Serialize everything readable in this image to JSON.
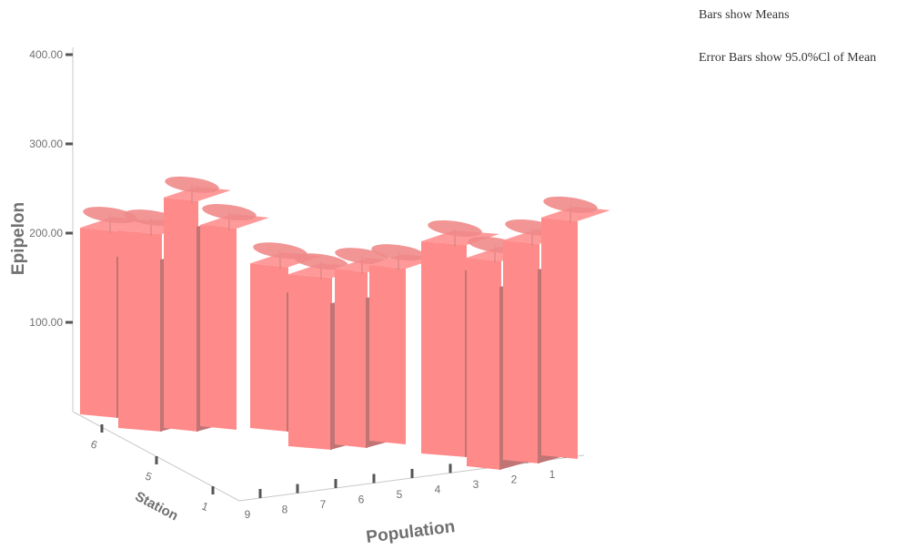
{
  "notes": {
    "bars_show": "Bars show Means",
    "error_bars": "Error Bars show 95.0%Cl of Mean"
  },
  "chart_data": {
    "type": "bar",
    "subtype": "3d-clustered",
    "ylabel": "Epipelon",
    "xlabel": "Population",
    "zlabel": "Station",
    "ylim": [
      0,
      400
    ],
    "yticks": [
      "100.00",
      "200.00",
      "300.00",
      "400.00"
    ],
    "x_categories": [
      "9",
      "8",
      "7",
      "6",
      "5",
      "4",
      "3",
      "2",
      "1"
    ],
    "z_categories": [
      "6",
      "5",
      "1"
    ],
    "bar_color": "#ff8a8a",
    "bar_side_color": "#c07474",
    "bars": [
      {
        "station": "6",
        "population": "9",
        "value": 255
      },
      {
        "station": "6",
        "population": "8",
        "value": 270
      },
      {
        "station": "6",
        "population": "7",
        "value": 315
      },
      {
        "station": "6",
        "population": "6",
        "value": 275
      },
      {
        "station": "5",
        "population": "6",
        "value": 225
      },
      {
        "station": "5",
        "population": "5",
        "value": 235
      },
      {
        "station": "5",
        "population": "4",
        "value": 240
      },
      {
        "station": "5",
        "population": "3",
        "value": 240
      },
      {
        "station": "1",
        "population": "3",
        "value": 290
      },
      {
        "station": "1",
        "population": "2",
        "value": 285
      },
      {
        "station": "1",
        "population": "1",
        "value": 300
      },
      {
        "station": "1",
        "population": "1b",
        "value": 325
      }
    ]
  }
}
